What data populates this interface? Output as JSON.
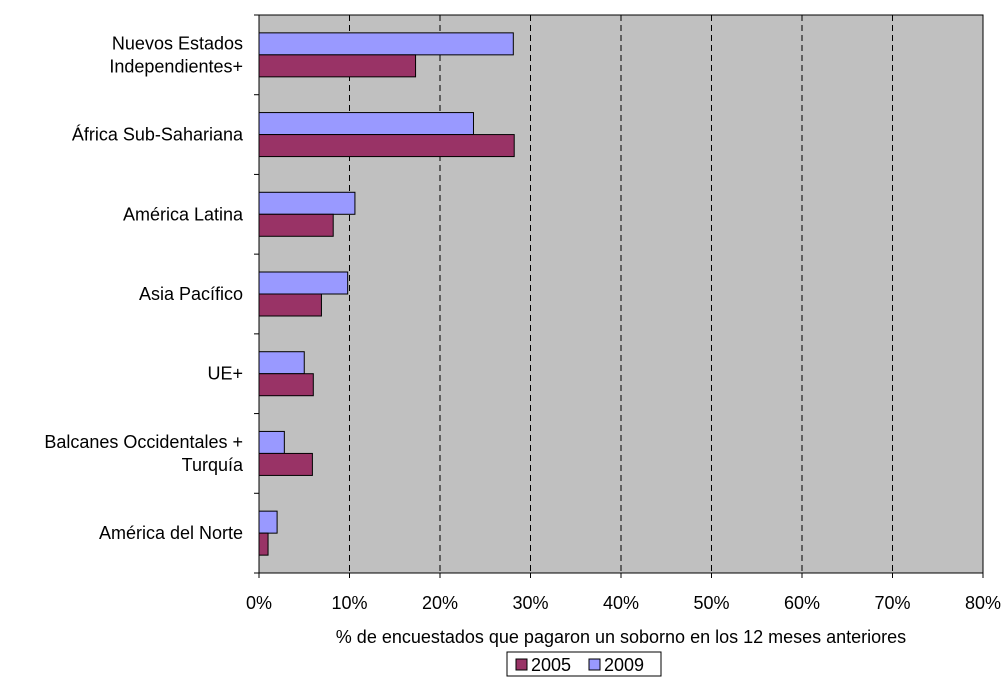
{
  "chart_data": {
    "type": "bar",
    "orientation": "horizontal",
    "title": "",
    "xlabel": "% de encuestados que pagaron un soborno en los 12 meses anteriores",
    "ylabel": "",
    "xlim": [
      0,
      80
    ],
    "x_ticks": [
      "0%",
      "10%",
      "20%",
      "30%",
      "40%",
      "50%",
      "60%",
      "70%",
      "80%"
    ],
    "grid": "vertical dashed",
    "legend_position": "bottom",
    "categories": [
      [
        "Nuevos Estados",
        "Independientes+"
      ],
      [
        "África Sub-Sahariana"
      ],
      [
        "América Latina"
      ],
      [
        "Asia Pacífico"
      ],
      [
        "UE+"
      ],
      [
        "Balcanes Occidentales +",
        "Turquía"
      ],
      [
        "América del Norte"
      ]
    ],
    "series": [
      {
        "name": "2005",
        "color": "#993366",
        "values": [
          17.3,
          28.2,
          8.2,
          6.9,
          6.0,
          5.9,
          1.0
        ]
      },
      {
        "name": "2009",
        "color": "#9999FF",
        "values": [
          28.1,
          23.7,
          10.6,
          9.8,
          5.0,
          2.8,
          2.0
        ]
      }
    ],
    "legend_order": [
      "2005",
      "2009"
    ],
    "plot_background": "#C0C0C0"
  }
}
